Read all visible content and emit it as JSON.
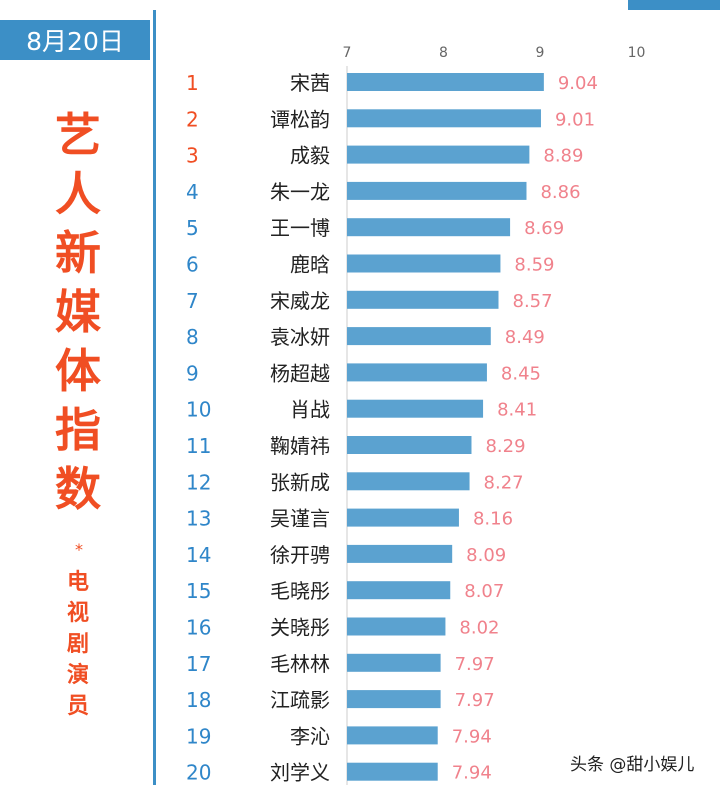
{
  "badge": {
    "date": "8月20日"
  },
  "side": {
    "title": "艺人新媒体指数",
    "star": "*",
    "subtitle": "电视剧演员"
  },
  "footer": {
    "watermark": "头条 @甜小娱儿"
  },
  "colors": {
    "bar": "#5ba2d0",
    "value_label": "#f0828c",
    "rank_top": "#f04e23",
    "rank": "#2f86c9",
    "accent": "#3c8fc6"
  },
  "chart_data": {
    "type": "bar",
    "orientation": "horizontal",
    "xlim": [
      7,
      10
    ],
    "xticks": [
      7,
      8,
      9,
      10
    ],
    "ranks": [
      1,
      2,
      3,
      4,
      5,
      6,
      7,
      8,
      9,
      10,
      11,
      12,
      13,
      14,
      15,
      16,
      17,
      18,
      19,
      20
    ],
    "categories": [
      "宋茜",
      "谭松韵",
      "成毅",
      "朱一龙",
      "王一博",
      "鹿晗",
      "宋威龙",
      "袁冰妍",
      "杨超越",
      "肖战",
      "鞠婧祎",
      "张新成",
      "吴谨言",
      "徐开骋",
      "毛晓彤",
      "关晓彤",
      "毛林林",
      "江疏影",
      "李沁",
      "刘学义"
    ],
    "values": [
      9.04,
      9.01,
      8.89,
      8.86,
      8.69,
      8.59,
      8.57,
      8.49,
      8.45,
      8.41,
      8.29,
      8.27,
      8.16,
      8.09,
      8.07,
      8.02,
      7.97,
      7.97,
      7.94,
      7.94
    ],
    "value_labels": [
      "9.04",
      "9.01",
      "8.89",
      "8.86",
      "8.69",
      "8.59",
      "8.57",
      "8.49",
      "8.45",
      "8.41",
      "8.29",
      "8.27",
      "8.16",
      "8.09",
      "8.07",
      "8.02",
      "7.97",
      "7.97",
      "7.94",
      "7.94"
    ],
    "grid": false,
    "legend": "none"
  }
}
